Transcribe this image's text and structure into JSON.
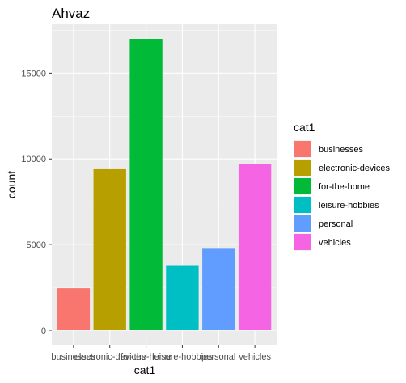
{
  "chart_data": {
    "type": "bar",
    "title": "Ahvaz",
    "xlabel": "cat1",
    "ylabel": "count",
    "categories": [
      "businesses",
      "electronic-devices",
      "for-the-home",
      "leisure-hobbies",
      "personal",
      "vehicles"
    ],
    "values": [
      2450,
      9400,
      17000,
      3800,
      4800,
      9700
    ],
    "colors": [
      "#F8766D",
      "#B79F00",
      "#00BA38",
      "#00BFC4",
      "#619CFF",
      "#F564E3"
    ],
    "ylim": [
      0,
      17850
    ],
    "yticks": [
      0,
      5000,
      10000,
      15000
    ],
    "ytick_labels": [
      "0",
      "5000",
      "10000",
      "15000"
    ],
    "grid": true,
    "legend": {
      "title": "cat1",
      "placement": "right",
      "entries": [
        "businesses",
        "electronic-devices",
        "for-the-home",
        "leisure-hobbies",
        "personal",
        "vehicles"
      ]
    }
  },
  "colors": {
    "panel_bg": "#EBEBEB",
    "grid_major": "#FFFFFF",
    "text": "#000000",
    "tick_text": "#4D4D4D"
  }
}
